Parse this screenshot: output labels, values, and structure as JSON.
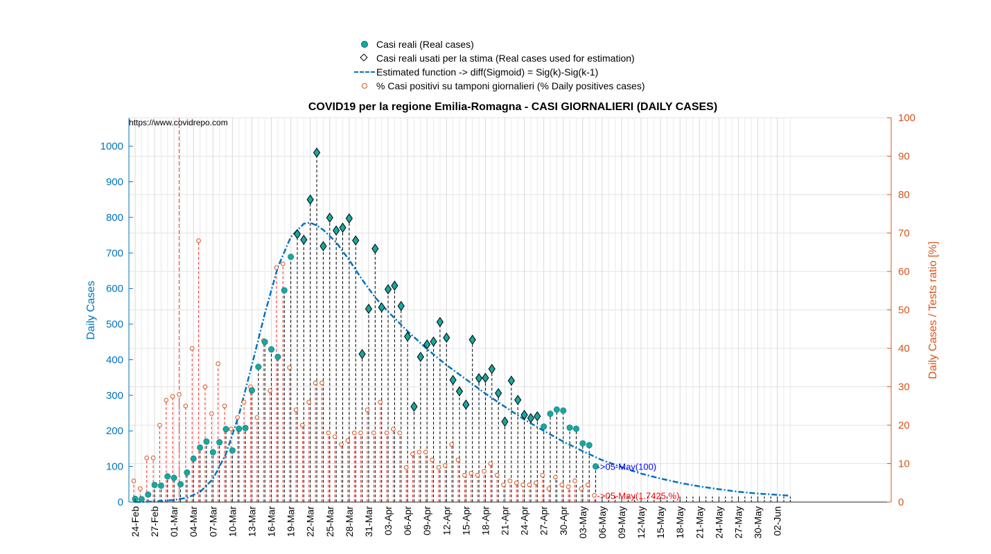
{
  "legend": [
    {
      "label": "Casi reali (Real cases)",
      "symbol": "dot"
    },
    {
      "label": "Casi reali usati per la stima (Real cases used for estimation)",
      "symbol": "diamond"
    },
    {
      "label": "Estimated function -> diff(Sigmoid) = Sig(k)-Sig(k-1)",
      "symbol": "dash"
    },
    {
      "label": "% Casi positivi su tamponi giornalieri (% Daily positives cases)",
      "symbol": "circle"
    }
  ],
  "colors": {
    "real_cases": "#16a8a0",
    "estimate": "#0072bd",
    "ratio": "#d95319",
    "left_axis": "#0072bd",
    "right_axis": "#d95319",
    "annotation_blue": "#0000ff",
    "annotation_red": "#ff0000"
  },
  "chart_data": {
    "type": "scatter",
    "title": "COVID19 per la regione Emilia-Romagna - CASI GIORNALIERI (DAILY CASES)",
    "source_text": "https://www.covidrepo.com",
    "ylabel": "Daily Cases",
    "ylabel_right": "Daily Cases / Tests ratio [%]",
    "ylim": [
      0,
      1080
    ],
    "ylim_right": [
      0,
      100
    ],
    "yticks": [
      0,
      100,
      200,
      300,
      400,
      500,
      600,
      700,
      800,
      900,
      1000
    ],
    "yticks_right": [
      0,
      10,
      20,
      30,
      40,
      50,
      60,
      70,
      80,
      90,
      100
    ],
    "grid": true,
    "legend_position": "top-center",
    "x_tick_labels": [
      "24-Feb",
      "27-Feb",
      "01-Mar",
      "04-Mar",
      "07-Mar",
      "10-Mar",
      "13-Mar",
      "16-Mar",
      "19-Mar",
      "22-Mar",
      "25-Mar",
      "28-Mar",
      "31-Mar",
      "03-Apr",
      "06-Apr",
      "09-Apr",
      "12-Apr",
      "15-Apr",
      "18-Apr",
      "21-Apr",
      "24-Apr",
      "27-Apr",
      "30-Apr",
      "03-May",
      "06-May",
      "09-May",
      "12-May",
      "15-May",
      "18-May",
      "21-May",
      "24-May",
      "27-May",
      "30-May",
      "02-Jun"
    ],
    "start_date": "24-Feb",
    "end_date": "04-Jun",
    "peak_marker_date": "02-Mar",
    "series": [
      {
        "name": "Casi reali (Real cases)",
        "dates": [
          "24-Feb",
          "25-Feb",
          "26-Feb",
          "27-Feb",
          "28-Feb",
          "29-Feb",
          "01-Mar",
          "02-Mar",
          "03-Mar",
          "04-Mar",
          "05-Mar",
          "06-Mar",
          "07-Mar",
          "08-Mar",
          "09-Mar",
          "10-Mar",
          "11-Mar",
          "12-Mar",
          "13-Mar",
          "14-Mar",
          "15-Mar",
          "16-Mar",
          "17-Mar",
          "18-Mar",
          "19-Mar",
          "20-Mar",
          "21-Mar",
          "22-Mar",
          "23-Mar",
          "24-Mar",
          "25-Mar",
          "26-Mar",
          "27-Mar",
          "28-Mar",
          "29-Mar",
          "30-Mar",
          "31-Mar",
          "01-Apr",
          "02-Apr",
          "03-Apr",
          "04-Apr",
          "05-Apr",
          "06-Apr",
          "07-Apr",
          "08-Apr",
          "09-Apr",
          "10-Apr",
          "11-Apr",
          "12-Apr",
          "13-Apr",
          "14-Apr",
          "15-Apr",
          "16-Apr",
          "17-Apr",
          "18-Apr",
          "19-Apr",
          "20-Apr",
          "21-Apr",
          "22-Apr",
          "23-Apr",
          "24-Apr",
          "25-Apr",
          "26-Apr",
          "27-Apr",
          "28-Apr",
          "29-Apr",
          "30-Apr",
          "01-May",
          "02-May",
          "03-May",
          "04-May",
          "05-May"
        ],
        "values": [
          9,
          8,
          21,
          48,
          46,
          72,
          68,
          50,
          83,
          122,
          153,
          170,
          140,
          168,
          205,
          145,
          206,
          208,
          314,
          380,
          450,
          429,
          408,
          595,
          689,
          753,
          737,
          850,
          982,
          719,
          799,
          763,
          771,
          797,
          735,
          416,
          543,
          712,
          547,
          598,
          608,
          551,
          465,
          268,
          408,
          443,
          451,
          506,
          462,
          343,
          311,
          274,
          456,
          348,
          349,
          374,
          306,
          226,
          341,
          287,
          245,
          236,
          241,
          212,
          248,
          260,
          257,
          209,
          206,
          165,
          160,
          100
        ]
      },
      {
        "name": "Casi reali usati per la stima (Real cases used for estimation)",
        "dates": [
          "20-Mar",
          "21-Mar",
          "22-Mar",
          "23-Mar",
          "24-Mar",
          "25-Mar",
          "26-Mar",
          "27-Mar",
          "28-Mar",
          "29-Mar",
          "30-Mar",
          "31-Mar",
          "01-Apr",
          "02-Apr",
          "03-Apr",
          "04-Apr",
          "05-Apr",
          "06-Apr",
          "07-Apr",
          "08-Apr",
          "09-Apr",
          "10-Apr",
          "11-Apr",
          "12-Apr",
          "13-Apr",
          "14-Apr",
          "15-Apr",
          "16-Apr",
          "17-Apr",
          "18-Apr",
          "19-Apr",
          "20-Apr",
          "21-Apr",
          "22-Apr",
          "23-Apr",
          "24-Apr",
          "25-Apr",
          "26-Apr"
        ],
        "values": [
          753,
          737,
          850,
          982,
          719,
          799,
          763,
          771,
          797,
          735,
          416,
          543,
          712,
          547,
          598,
          608,
          551,
          465,
          268,
          408,
          443,
          451,
          506,
          462,
          343,
          311,
          274,
          456,
          348,
          349,
          374,
          306,
          226,
          341,
          287,
          245,
          236,
          241
        ]
      },
      {
        "name": "Estimated function -> diff(Sigmoid) = Sig(k)-Sig(k-1)",
        "dates": [
          "24-Feb",
          "26-Feb",
          "28-Feb",
          "01-Mar",
          "03-Mar",
          "05-Mar",
          "07-Mar",
          "09-Mar",
          "11-Mar",
          "13-Mar",
          "15-Mar",
          "17-Mar",
          "19-Mar",
          "21-Mar",
          "22-Mar",
          "23-Mar",
          "24-Mar",
          "26-Mar",
          "28-Mar",
          "30-Mar",
          "01-Apr",
          "03-Apr",
          "06-Apr",
          "09-Apr",
          "12-Apr",
          "15-Apr",
          "18-Apr",
          "21-Apr",
          "24-Apr",
          "27-Apr",
          "30-Apr",
          "03-May",
          "06-May",
          "09-May",
          "12-May",
          "15-May",
          "18-May",
          "21-May",
          "24-May",
          "27-May",
          "30-May",
          "04-Jun"
        ],
        "values": [
          0,
          1,
          3,
          6,
          12,
          28,
          65,
          135,
          245,
          385,
          530,
          660,
          745,
          782,
          785,
          777,
          765,
          730,
          680,
          625,
          575,
          535,
          480,
          430,
          385,
          345,
          305,
          268,
          232,
          200,
          170,
          143,
          118,
          98,
          80,
          66,
          54,
          44,
          36,
          29,
          24,
          18
        ]
      },
      {
        "name": "% Casi positivi su tamponi giornalieri (% Daily positives cases)",
        "axis": "right",
        "dates": [
          "24-Feb",
          "25-Feb",
          "26-Feb",
          "27-Feb",
          "28-Feb",
          "29-Feb",
          "01-Mar",
          "02-Mar",
          "03-Mar",
          "04-Mar",
          "05-Mar",
          "06-Mar",
          "07-Mar",
          "08-Mar",
          "09-Mar",
          "10-Mar",
          "11-Mar",
          "12-Mar",
          "13-Mar",
          "14-Mar",
          "15-Mar",
          "16-Mar",
          "17-Mar",
          "18-Mar",
          "19-Mar",
          "20-Mar",
          "21-Mar",
          "22-Mar",
          "23-Mar",
          "24-Mar",
          "25-Mar",
          "26-Mar",
          "27-Mar",
          "28-Mar",
          "29-Mar",
          "30-Mar",
          "31-Mar",
          "01-Apr",
          "02-Apr",
          "03-Apr",
          "04-Apr",
          "05-Apr",
          "06-Apr",
          "07-Apr",
          "08-Apr",
          "09-Apr",
          "10-Apr",
          "11-Apr",
          "12-Apr",
          "13-Apr",
          "14-Apr",
          "15-Apr",
          "16-Apr",
          "17-Apr",
          "18-Apr",
          "19-Apr",
          "20-Apr",
          "21-Apr",
          "22-Apr",
          "23-Apr",
          "24-Apr",
          "25-Apr",
          "26-Apr",
          "27-Apr",
          "28-Apr",
          "29-Apr",
          "30-Apr",
          "01-May",
          "02-May",
          "03-May",
          "04-May",
          "05-May"
        ],
        "values": [
          5.5,
          3.5,
          11.5,
          11.5,
          20,
          26.5,
          27.5,
          28,
          25,
          40,
          68,
          30,
          23,
          36,
          25,
          19,
          22,
          26,
          30,
          22,
          42,
          29,
          61,
          62,
          35,
          24,
          20,
          26,
          31,
          31,
          18,
          17,
          15,
          16,
          18,
          18,
          24,
          18,
          26,
          18,
          19,
          18,
          9,
          12.5,
          13,
          13,
          11,
          9,
          9.5,
          15,
          11,
          7,
          7.5,
          7,
          8,
          10,
          7,
          4.5,
          5.5,
          5,
          4.5,
          4.5,
          5,
          7,
          3.5,
          6.5,
          4.5,
          4,
          5.5,
          3.5,
          4.5,
          1.7425
        ]
      }
    ],
    "annotations": [
      {
        "text": "->05-May(100)",
        "date": "05-May",
        "value": 100,
        "axis": "left",
        "color": "#0000ff"
      },
      {
        "text": "->05-May(1.7425 %)",
        "date": "05-May",
        "value": 1.7425,
        "axis": "right",
        "color": "#ff0000"
      }
    ]
  }
}
